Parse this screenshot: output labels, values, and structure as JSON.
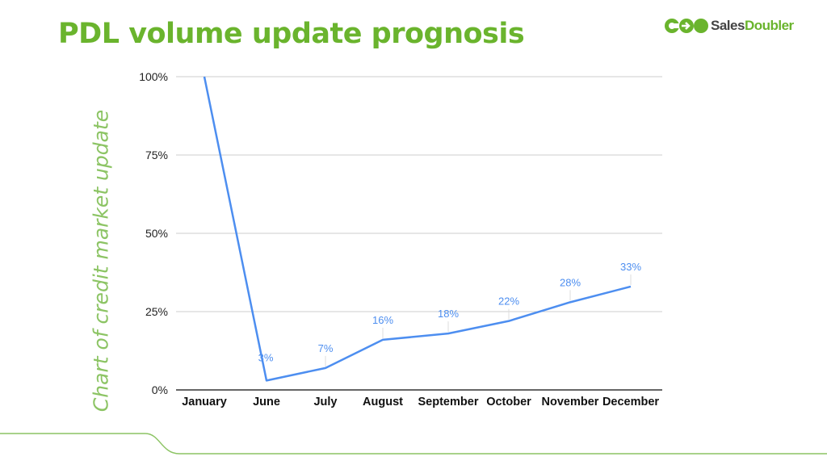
{
  "title": "PDL volume update prognosis",
  "logo": {
    "part1": "Sales",
    "part2": "Doubler"
  },
  "colors": {
    "title": "#6ab42d",
    "line": "#4d8ef0",
    "axis_label": "#8cc464"
  },
  "chart_data": {
    "type": "line",
    "title": "",
    "xlabel": "",
    "ylabel": "Chart of credit market update",
    "categories": [
      "January",
      "June",
      "July",
      "August",
      "September",
      "October",
      "November",
      "December"
    ],
    "values": [
      100,
      3,
      7,
      16,
      18,
      22,
      28,
      33
    ],
    "data_labels": [
      "",
      "3%",
      "7%",
      "16%",
      "18%",
      "22%",
      "28%",
      "33%"
    ],
    "ylim": [
      0,
      100
    ],
    "yticks": [
      "0%",
      "25%",
      "50%",
      "75%",
      "100%"
    ],
    "grid": true,
    "legend": "none"
  }
}
